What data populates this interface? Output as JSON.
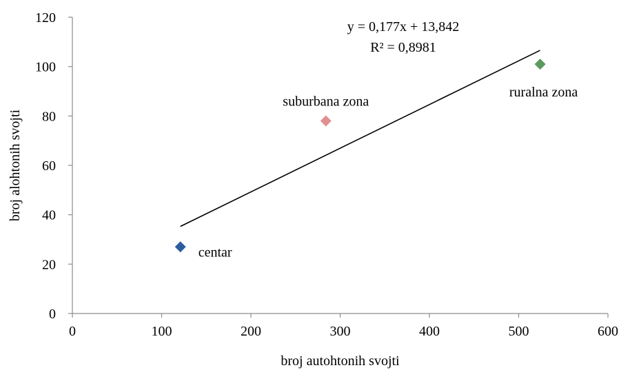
{
  "chart_data": {
    "type": "scatter",
    "xlabel": "broj autohtonih svojti",
    "ylabel": "broj alohtonih svojti",
    "xlim": [
      0,
      600
    ],
    "ylim": [
      0,
      120
    ],
    "x_ticks": [
      0,
      100,
      200,
      300,
      400,
      500,
      600
    ],
    "y_ticks": [
      0,
      20,
      40,
      60,
      80,
      100,
      120
    ],
    "grid": false,
    "points": [
      {
        "label": "centar",
        "x": 121,
        "y": 27,
        "color": "#2E5D9E"
      },
      {
        "label": "suburbana zona",
        "x": 284,
        "y": 78,
        "color": "#E0908F"
      },
      {
        "label": "ruralna zona",
        "x": 524,
        "y": 101,
        "color": "#5B9A60"
      }
    ],
    "trendline": {
      "type": "linear",
      "slope": 0.177,
      "intercept": 13.842,
      "x_range": [
        121,
        524
      ],
      "equation_text": "y = 0,177x + 13,842",
      "r2_text": "R² = 0,8981",
      "color": "#000000"
    }
  }
}
